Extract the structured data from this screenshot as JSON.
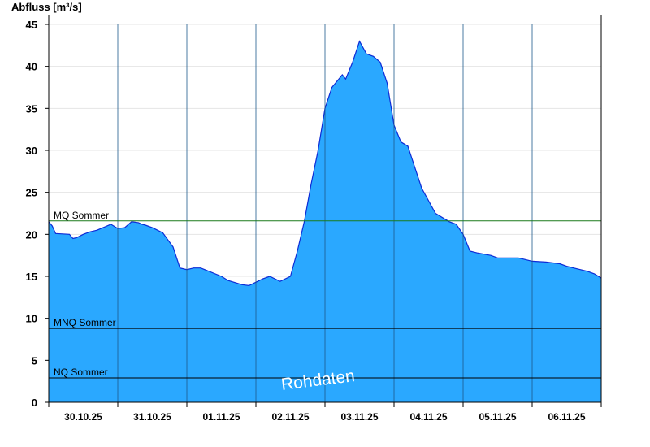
{
  "chart_data": {
    "type": "area",
    "ylabel": "Abfluss [m³/s]",
    "ylim": [
      0,
      45
    ],
    "yticks": [
      "0",
      "5",
      "10",
      "15",
      "20",
      "25",
      "30",
      "35",
      "40",
      "45"
    ],
    "grid": "horizontal",
    "x_day_labels": [
      "30.10.25",
      "31.10.25",
      "01.11.25",
      "02.11.25",
      "03.11.25",
      "04.11.25",
      "05.11.25",
      "06.11.25"
    ],
    "x_range_days": [
      0,
      8
    ],
    "series": [
      {
        "color": "#2aa8ff",
        "x_days": [
          0.0,
          0.05,
          0.1,
          0.3,
          0.35,
          0.4,
          0.5,
          0.6,
          0.7,
          0.9,
          1.0,
          1.1,
          1.2,
          1.3,
          1.35,
          1.4,
          1.5,
          1.65,
          1.8,
          1.9,
          2.0,
          2.1,
          2.2,
          2.5,
          2.6,
          2.8,
          2.9,
          3.1,
          3.2,
          3.35,
          3.5,
          3.6,
          3.7,
          3.8,
          3.9,
          4.0,
          4.1,
          4.2,
          4.25,
          4.3,
          4.4,
          4.5,
          4.6,
          4.7,
          4.8,
          4.9,
          5.0,
          5.1,
          5.2,
          5.3,
          5.4,
          5.5,
          5.6,
          5.8,
          5.9,
          6.0,
          6.1,
          6.2,
          6.4,
          6.5,
          6.65,
          6.8,
          6.9,
          7.0,
          7.2,
          7.4,
          7.5,
          7.6,
          7.8,
          7.9,
          8.0
        ],
        "y": [
          21.5,
          21.0,
          20.1,
          20.0,
          19.5,
          19.6,
          20.0,
          20.3,
          20.5,
          21.2,
          20.7,
          20.8,
          21.5,
          21.4,
          21.2,
          21.1,
          20.8,
          20.2,
          18.5,
          16.0,
          15.8,
          16.0,
          16.0,
          15.0,
          14.5,
          14.0,
          13.9,
          14.7,
          15.0,
          14.4,
          15.0,
          18.0,
          21.5,
          26.0,
          30.0,
          35.0,
          37.5,
          38.5,
          39.0,
          38.5,
          40.5,
          43.0,
          41.5,
          41.2,
          40.5,
          38.0,
          33.0,
          31.0,
          30.5,
          28.0,
          25.5,
          24.0,
          22.5,
          21.5,
          21.2,
          20.0,
          18.0,
          17.8,
          17.5,
          17.2,
          17.2,
          17.2,
          17.0,
          16.8,
          16.7,
          16.5,
          16.2,
          16.0,
          15.6,
          15.3,
          14.8
        ]
      }
    ],
    "reference_lines": [
      {
        "label": "MQ Sommer",
        "y": 21.6,
        "color": "#1a7a1a"
      },
      {
        "label": "MNQ Sommer",
        "y": 8.8,
        "color": "#000000"
      },
      {
        "label": "NQ Sommer",
        "y": 2.9,
        "color": "#000000"
      }
    ],
    "watermark": "Rohdaten"
  }
}
